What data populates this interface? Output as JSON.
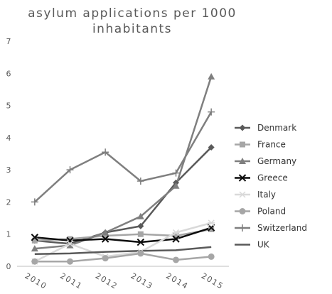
{
  "chart_data": {
    "type": "line",
    "title_lines": [
      "asylum applications per 1000",
      "inhabitants"
    ],
    "xlabel": "",
    "ylabel": "",
    "x": [
      "2010",
      "2011",
      "2012",
      "2013",
      "2014",
      "2015"
    ],
    "ylim": [
      0,
      7
    ],
    "yticks": [
      "0",
      "1",
      "2",
      "3",
      "4",
      "5",
      "6",
      "7"
    ],
    "grid": false,
    "legend_position": "right",
    "series": [
      {
        "name": "Denmark",
        "color": "#595959",
        "marker": "diamond",
        "values": [
          0.8,
          0.7,
          1.05,
          1.25,
          2.6,
          3.7
        ]
      },
      {
        "name": "France",
        "color": "#a6a6a6",
        "marker": "square",
        "values": [
          0.8,
          0.85,
          0.95,
          1.0,
          0.95,
          1.15
        ]
      },
      {
        "name": "Germany",
        "color": "#7f7f7f",
        "marker": "triangle",
        "values": [
          0.55,
          0.65,
          1.05,
          1.55,
          2.5,
          5.9
        ]
      },
      {
        "name": "Greece",
        "color": "#0d0d0d",
        "marker": "x",
        "values": [
          0.9,
          0.8,
          0.85,
          0.75,
          0.85,
          1.2
        ]
      },
      {
        "name": "Italy",
        "color": "#d9d9d9",
        "marker": "star",
        "values": [
          0.15,
          0.7,
          0.3,
          0.45,
          1.05,
          1.35
        ]
      },
      {
        "name": "Poland",
        "color": "#a6a6a6",
        "marker": "circle",
        "values": [
          0.15,
          0.15,
          0.25,
          0.4,
          0.2,
          0.3
        ]
      },
      {
        "name": "Switzerland",
        "color": "#7f7f7f",
        "marker": "plus",
        "values": [
          2.0,
          3.0,
          3.55,
          2.65,
          2.9,
          4.8
        ]
      },
      {
        "name": "UK",
        "color": "#595959",
        "marker": "none",
        "values": [
          0.38,
          0.4,
          0.45,
          0.48,
          0.5,
          0.6
        ]
      }
    ]
  }
}
